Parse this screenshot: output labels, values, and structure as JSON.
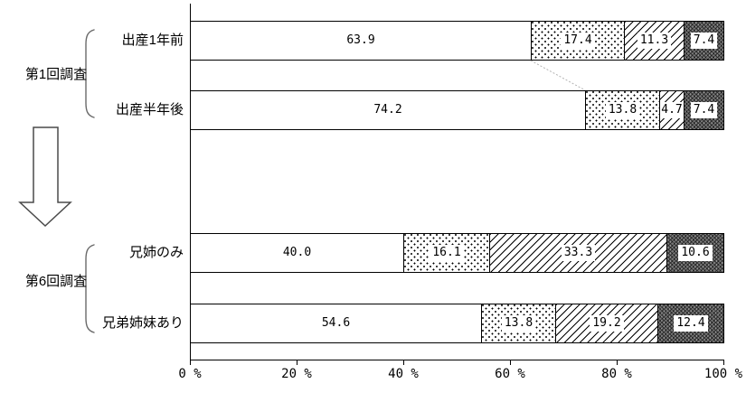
{
  "chart_data": {
    "type": "bar",
    "variant": "stacked-horizontal-100percent",
    "title": "",
    "unit": "%",
    "categories": [
      "出産1年前",
      "出産半年後",
      "兄姉のみ",
      "兄弟姉妹あり"
    ],
    "groups": [
      {
        "label": "第1回調査",
        "category_indexes": [
          0,
          1
        ]
      },
      {
        "label": "第6回調査",
        "category_indexes": [
          2,
          3
        ]
      }
    ],
    "series": [
      {
        "name": "segment-plain",
        "pattern": "plain",
        "values": [
          63.9,
          74.2,
          40.0,
          54.6
        ]
      },
      {
        "name": "segment-dots",
        "pattern": "dots",
        "values": [
          17.4,
          13.8,
          16.1,
          13.8
        ]
      },
      {
        "name": "segment-hatch",
        "pattern": "hatch",
        "values": [
          11.3,
          4.7,
          33.3,
          19.2
        ]
      },
      {
        "name": "segment-dark",
        "pattern": "dark",
        "values": [
          7.4,
          7.4,
          10.6,
          12.4
        ]
      }
    ],
    "x_axis": {
      "tick_labels": [
        "0 %",
        "20 %",
        "40 %",
        "60 %",
        "80 %",
        "100 %"
      ],
      "range": [
        0,
        100
      ]
    },
    "connector": {
      "between_categories": [
        0,
        1
      ],
      "after_series_index": 0
    },
    "legend": "none",
    "grid": "off"
  },
  "icons": {
    "transition_arrow": "down-block-arrow",
    "group_braces": "left-parenthesis-brace"
  },
  "colors": {
    "line": "#000000",
    "connector_line": "#b3b3b3",
    "dark_fill_base": "#757575",
    "background": "#ffffff"
  }
}
